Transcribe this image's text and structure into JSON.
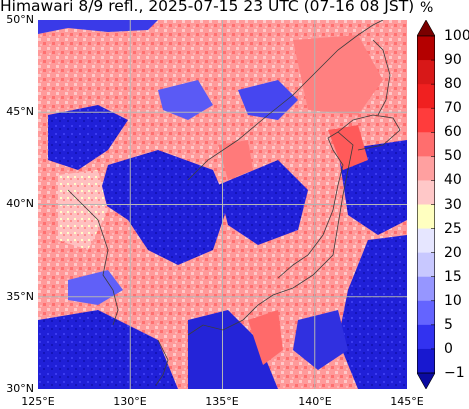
{
  "title": "Himawari 8/9 refl., 2025-07-15 23 UTC (07-16 08 JST)",
  "map": {
    "lon_range": [
      125,
      145
    ],
    "lat_range": [
      30,
      50
    ],
    "x_tick_labels": [
      "125°E",
      "130°E",
      "135°E",
      "140°E",
      "145°E"
    ],
    "y_tick_labels": [
      "50°N",
      "45°N",
      "40°N",
      "35°N",
      "30°N"
    ],
    "grid": true,
    "coastlines": true
  },
  "colorbar": {
    "unit": "%",
    "levels": [
      "100",
      "90",
      "80",
      "70",
      "60",
      "50",
      "40",
      "30",
      "25",
      "20",
      "15",
      "10",
      "5",
      "0",
      "−1"
    ],
    "colors": [
      "#7a0000",
      "#b40000",
      "#d81818",
      "#f02020",
      "#ff3c3c",
      "#ff6e6e",
      "#ffa0a0",
      "#ffc8c8",
      "#ffffc0",
      "#e6e6ff",
      "#c8c8ff",
      "#9696ff",
      "#6464ff",
      "#3232f0",
      "#1818d0",
      "#0a0aa0"
    ],
    "extend": "both"
  }
}
